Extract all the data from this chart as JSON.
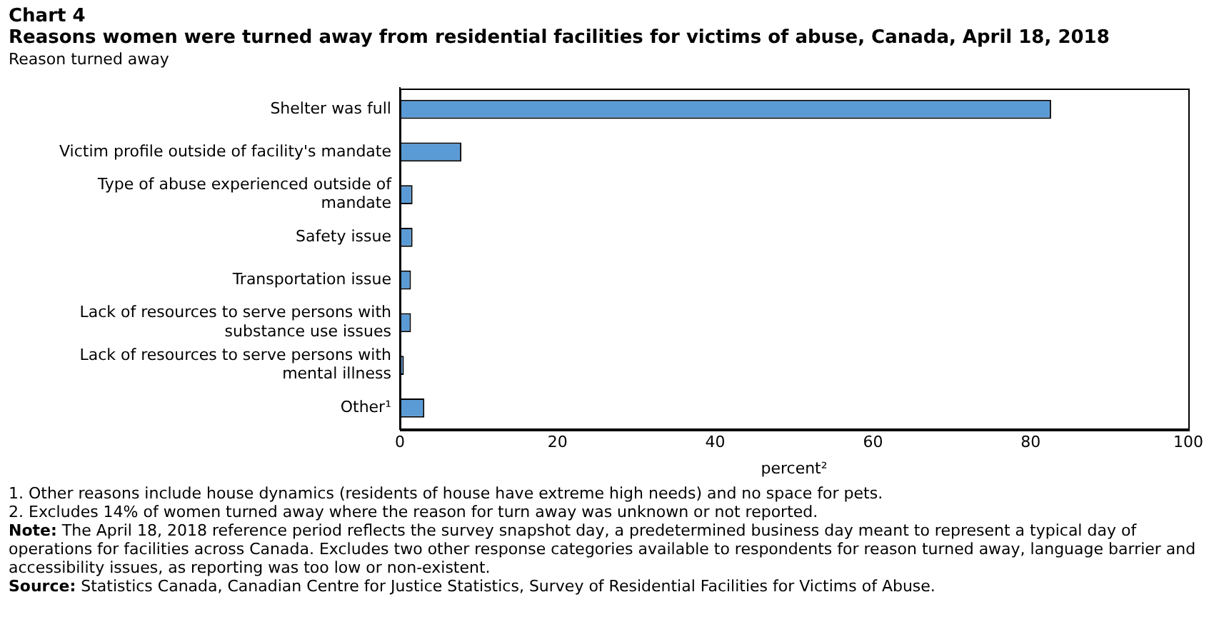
{
  "chart_data": {
    "type": "bar",
    "orientation": "horizontal",
    "title": "Chart 4",
    "subtitle": "Reasons women were turned away from residential facilities for victims of abuse, Canada, April 18, 2018",
    "ylabel": "Reason turned away",
    "xlabel": "percent²",
    "categories": [
      "Shelter was full",
      "Victim profile outside of facility's mandate",
      "Type of abuse experienced outside of mandate",
      "Safety issue",
      "Transportation issue",
      "Lack of resources to serve persons with substance use issues",
      "Lack of resources to serve persons with mental illness",
      "Other¹"
    ],
    "values": [
      82.6,
      7.8,
      1.6,
      1.6,
      1.4,
      1.4,
      0.5,
      3.1
    ],
    "color": "#5b9bd5",
    "xlim": [
      0,
      100
    ],
    "xticks": [
      0,
      20,
      40,
      60,
      80,
      100
    ],
    "grid": false,
    "legend": false,
    "annotations": [
      "1. Other reasons include house dynamics (residents of house have extreme high needs) and no space for pets.",
      "2. Excludes 14% of women turned away where the reason for turn away was unknown or not reported.",
      "Note: The April 18, 2018 reference period reflects the survey snapshot day, a predetermined business day meant to represent a typical day of operations for facilities across Canada. Excludes two other response categories available to respondents for reason turned away, language barrier and accessibility issues, as reporting was too low or non-existent.",
      "Source: Statistics Canada, Canadian Centre for Justice Statistics, Survey of Residential Facilities for Victims of Abuse."
    ]
  }
}
